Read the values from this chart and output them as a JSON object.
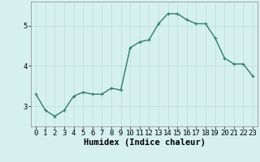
{
  "x": [
    0,
    1,
    2,
    3,
    4,
    5,
    6,
    7,
    8,
    9,
    10,
    11,
    12,
    13,
    14,
    15,
    16,
    17,
    18,
    19,
    20,
    21,
    22,
    23
  ],
  "y": [
    3.3,
    2.9,
    2.75,
    2.9,
    3.25,
    3.35,
    3.3,
    3.3,
    3.45,
    3.4,
    4.45,
    4.6,
    4.65,
    5.05,
    5.3,
    5.3,
    5.15,
    5.05,
    5.05,
    4.7,
    4.2,
    4.05,
    4.05,
    3.75
  ],
  "line_color": "#2e7d6e",
  "marker": "+",
  "bg_color": "#d6f0f0",
  "grid_color": "#b8dede",
  "xlabel": "Humidex (Indice chaleur)",
  "xlim": [
    -0.5,
    23.5
  ],
  "ylim": [
    2.5,
    5.6
  ],
  "yticks": [
    3,
    4,
    5
  ],
  "xtick_labels": [
    "0",
    "1",
    "2",
    "3",
    "4",
    "5",
    "6",
    "7",
    "8",
    "9",
    "10",
    "11",
    "12",
    "13",
    "14",
    "15",
    "16",
    "17",
    "18",
    "19",
    "20",
    "21",
    "22",
    "23"
  ],
  "linewidth": 1.0,
  "markersize": 3,
  "markeredgewidth": 0.8,
  "xlabel_fontsize": 7.5,
  "tick_fontsize": 6.5
}
